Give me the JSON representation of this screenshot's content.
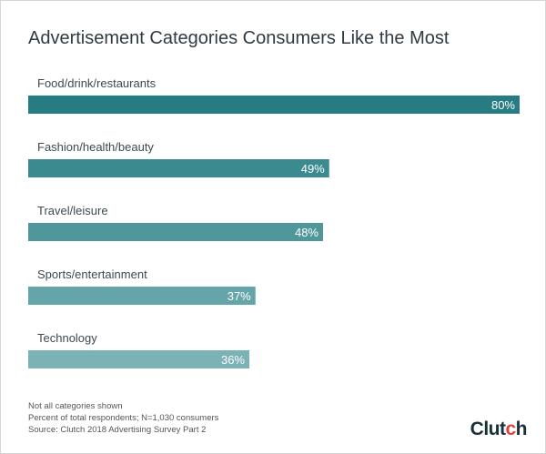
{
  "chart_data": {
    "type": "bar",
    "orientation": "horizontal",
    "title": "Advertisement Categories Consumers Like the Most",
    "categories": [
      "Food/drink/restaurants",
      "Fashion/health/beauty",
      "Travel/leisure",
      "Sports/entertainment",
      "Technology"
    ],
    "values": [
      80,
      49,
      48,
      37,
      36
    ],
    "data_labels": [
      "80%",
      "49%",
      "48%",
      "37%",
      "36%"
    ],
    "unit": "%",
    "xlim": [
      0,
      80
    ],
    "grid": false,
    "colors": [
      "#267c82",
      "#3b8a8f",
      "#50979c",
      "#65a5a9",
      "#7ab2b6"
    ]
  },
  "footer": {
    "notes": [
      "Not all categories shown",
      "Percent of total respondents; N=1,030 consumers",
      "Source: Clutch 2018 Advertising Survey Part 2"
    ],
    "logo": "Clutch"
  }
}
